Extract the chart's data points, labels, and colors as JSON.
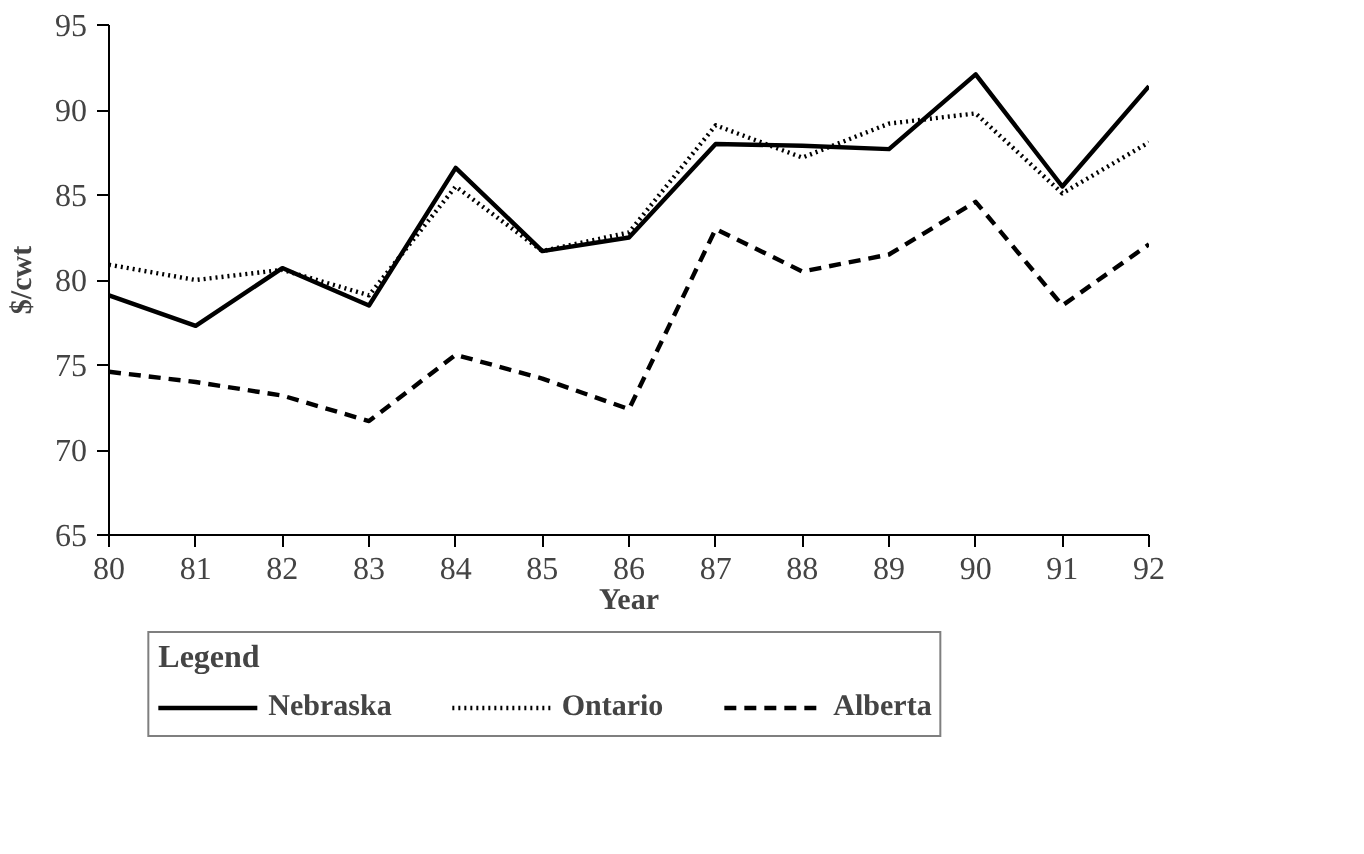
{
  "chart_data": {
    "type": "line",
    "xlabel": "Year",
    "ylabel": "$/cwt",
    "legend_title": "Legend",
    "legend": "bottom",
    "grid": false,
    "x": [
      80,
      81,
      82,
      83,
      84,
      85,
      86,
      87,
      88,
      89,
      90,
      91,
      92
    ],
    "xlim": [
      80,
      92
    ],
    "xticks": [
      80,
      81,
      82,
      83,
      84,
      85,
      86,
      87,
      88,
      89,
      90,
      91,
      92
    ],
    "ylim": [
      65,
      95
    ],
    "yticks": [
      65,
      70,
      75,
      80,
      85,
      90,
      95
    ],
    "series": [
      {
        "name": "Nebraska",
        "color": "#000000",
        "line_style": "solid",
        "values": [
          79.1,
          77.3,
          80.7,
          78.5,
          86.6,
          81.7,
          82.5,
          88.0,
          87.9,
          87.7,
          92.1,
          85.5,
          91.4
        ]
      },
      {
        "name": "Ontario",
        "color": "#000000",
        "line_style": "dotted",
        "values": [
          80.9,
          80.0,
          80.6,
          79.1,
          85.5,
          81.7,
          82.8,
          89.1,
          87.2,
          89.2,
          89.8,
          85.1,
          88.1
        ]
      },
      {
        "name": "Alberta",
        "color": "#000000",
        "line_style": "dashed",
        "values": [
          74.6,
          74.0,
          73.2,
          71.7,
          75.6,
          74.2,
          72.4,
          83.0,
          80.5,
          81.5,
          84.6,
          78.5,
          82.1
        ]
      }
    ]
  }
}
